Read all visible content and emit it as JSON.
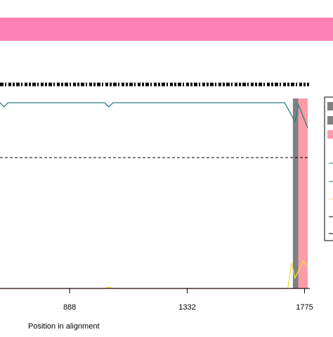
{
  "chart_data": {
    "type": "line",
    "xlabel": "Position in alignment",
    "xlim": [
      625,
      1795
    ],
    "xticks": [
      888,
      1332,
      1775
    ],
    "ylim": [
      0,
      1
    ],
    "threshold": 0.62,
    "regions": [
      {
        "start": 1731,
        "end": 1752,
        "color": "#808080"
      },
      {
        "start": 1752,
        "end": 1787,
        "color": "#ff9aa8"
      }
    ],
    "series": [
      {
        "color": "#2f7f80",
        "x": [
          625,
          640,
          655,
          1020,
          1036,
          1052,
          1700,
          1739,
          1752,
          1787
        ],
        "values": [
          0.88,
          0.86,
          0.88,
          0.88,
          0.86,
          0.88,
          0.88,
          0.79,
          0.87,
          0.76
        ]
      },
      {
        "color": "#f0e040",
        "x": [
          625,
          1020,
          1036,
          1052,
          1712,
          1726,
          1739,
          1771,
          1787
        ],
        "values": [
          0,
          0,
          0.006,
          0,
          0,
          0.12,
          0.05,
          0.13,
          0.1
        ]
      },
      {
        "color": "#a040a0",
        "x": [
          625,
          1787
        ],
        "values": [
          0,
          0
        ]
      }
    ]
  }
}
